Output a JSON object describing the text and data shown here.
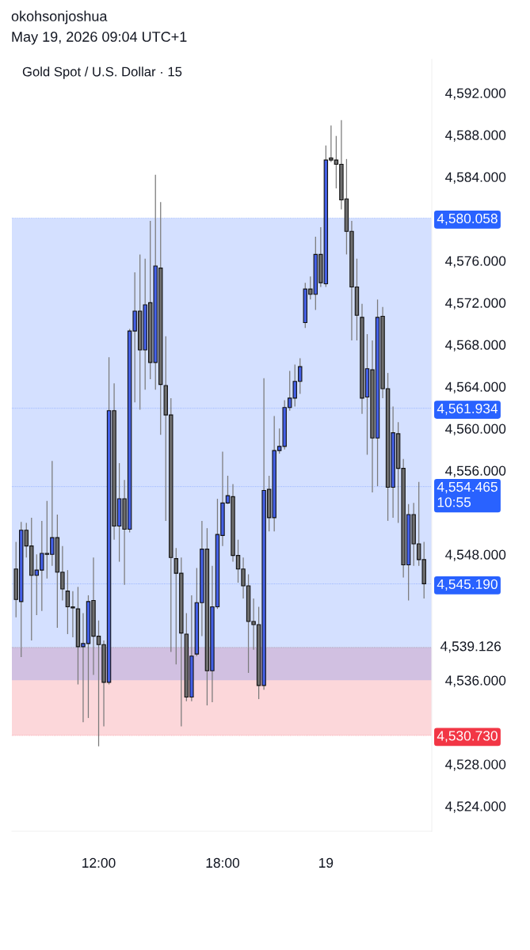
{
  "chart_data": {
    "type": "candlestick",
    "title": "Gold Spot / U.S. Dollar · 15",
    "annotations": [
      "okohsonjoshua",
      "May 19, 2026 09:04 UTC+1"
    ],
    "categories": [
      null,
      null,
      null,
      null,
      null,
      null,
      null,
      null,
      null,
      null,
      null,
      null,
      null,
      null,
      null,
      null,
      "12:00",
      null,
      null,
      null,
      null,
      null,
      null,
      null,
      null,
      null,
      null,
      null,
      null,
      null,
      null,
      null,
      null,
      null,
      null,
      null,
      null,
      null,
      null,
      null,
      "18:00",
      null,
      null,
      null,
      null,
      null,
      null,
      null,
      null,
      null,
      null,
      null,
      null,
      null,
      null,
      null,
      null,
      null,
      null,
      null,
      "19",
      null,
      null,
      null,
      null,
      null,
      null,
      null,
      null,
      null,
      null,
      null,
      null,
      null,
      null,
      null,
      null,
      null,
      null,
      null
    ],
    "ohlc": [
      [
        4546.6,
        4549.2,
        4542.0,
        4543.7
      ],
      [
        4543.5,
        4551.1,
        4538.2,
        4550.3
      ],
      [
        4550.3,
        4551.0,
        4547.7,
        4548.8
      ],
      [
        4548.8,
        4551.5,
        4539.8,
        4546.0
      ],
      [
        4546.0,
        4548.0,
        4542.2,
        4546.5
      ],
      [
        4546.5,
        4551.2,
        4542.6,
        4548.1
      ],
      [
        4548.1,
        4553.1,
        4545.7,
        4548.0
      ],
      [
        4548.0,
        4556.9,
        4546.9,
        4549.6
      ],
      [
        4549.6,
        4551.8,
        4541.0,
        4546.3
      ],
      [
        4546.3,
        4548.8,
        4543.6,
        4544.7
      ],
      [
        4544.5,
        4546.5,
        4540.4,
        4543.0
      ],
      [
        4543.0,
        4544.5,
        4540.1,
        4542.9
      ],
      [
        4542.8,
        4544.9,
        4535.6,
        4539.2
      ],
      [
        4539.2,
        4542.4,
        4532.0,
        4539.5
      ],
      [
        4539.5,
        4544.1,
        4532.4,
        4543.5
      ],
      [
        4543.6,
        4547.7,
        4536.5,
        4540.2
      ],
      [
        4540.2,
        4541.7,
        4529.7,
        4539.4
      ],
      [
        4539.4,
        4539.8,
        4531.6,
        4535.8
      ],
      [
        4535.8,
        4566.8,
        4535.6,
        4561.7
      ],
      [
        4561.7,
        4564.3,
        4549.4,
        4550.7
      ],
      [
        4550.7,
        4556.7,
        4547.3,
        4553.3
      ],
      [
        4553.3,
        4555.1,
        4545.1,
        4550.4
      ],
      [
        4550.4,
        4569.5,
        4550.1,
        4569.3
      ],
      [
        4569.3,
        4574.9,
        4562.5,
        4571.2
      ],
      [
        4571.2,
        4576.6,
        4561.8,
        4567.5
      ],
      [
        4567.5,
        4576.2,
        4563.7,
        4571.8
      ],
      [
        4572.0,
        4579.8,
        4564.7,
        4566.3
      ],
      [
        4566.3,
        4584.2,
        4563.7,
        4575.5
      ],
      [
        4575.3,
        4581.6,
        4559.4,
        4564.2
      ],
      [
        4564.1,
        4568.8,
        4551.2,
        4561.3
      ],
      [
        4561.3,
        4562.9,
        4538.7,
        4547.7
      ],
      [
        4547.6,
        4548.6,
        4537.5,
        4546.2
      ],
      [
        4546.2,
        4547.7,
        4531.6,
        4540.5
      ],
      [
        4540.4,
        4542.4,
        4534.0,
        4534.4
      ],
      [
        4534.4,
        4544.1,
        4534.0,
        4538.3
      ],
      [
        4538.5,
        4546.7,
        4538.3,
        4543.4
      ],
      [
        4543.4,
        4551.2,
        4540.2,
        4548.5
      ],
      [
        4548.5,
        4550.5,
        4533.6,
        4536.9
      ],
      [
        4536.9,
        4546.9,
        4533.9,
        4543.0
      ],
      [
        4543.0,
        4553.3,
        4542.8,
        4549.9
      ],
      [
        4549.8,
        4557.8,
        4548.8,
        4552.9
      ],
      [
        4552.9,
        4555.5,
        4552.8,
        4553.6
      ],
      [
        4553.5,
        4554.7,
        4547.3,
        4547.9
      ],
      [
        4547.9,
        4549.4,
        4545.3,
        4546.6
      ],
      [
        4546.6,
        4547.7,
        4543.8,
        4545.0
      ],
      [
        4545.0,
        4546.1,
        4536.7,
        4541.6
      ],
      [
        4541.6,
        4543.8,
        4538.9,
        4541.3
      ],
      [
        4541.3,
        4543.0,
        4534.2,
        4535.5
      ],
      [
        4535.5,
        4564.8,
        4535.1,
        4554.1
      ],
      [
        4554.2,
        4555.5,
        4550.2,
        4551.5
      ],
      [
        4551.5,
        4561.2,
        4550.2,
        4557.9
      ],
      [
        4557.9,
        4560.0,
        4557.6,
        4558.3
      ],
      [
        4558.3,
        4562.7,
        4558.0,
        4562.0
      ],
      [
        4562.0,
        4565.5,
        4561.7,
        4562.9
      ],
      [
        4562.9,
        4566.1,
        4562.1,
        4564.5
      ],
      [
        4564.5,
        4566.7,
        4563.3,
        4565.9
      ],
      [
        4570.1,
        4573.9,
        4569.6,
        4573.3
      ],
      [
        4573.3,
        4574.5,
        4572.3,
        4572.8
      ],
      [
        4572.8,
        4578.3,
        4571.3,
        4576.6
      ],
      [
        4576.6,
        4579.2,
        4573.5,
        4573.9
      ],
      [
        4573.8,
        4587.0,
        4573.5,
        4585.6
      ],
      [
        4585.8,
        4588.9,
        4585.4,
        4585.6
      ],
      [
        4585.6,
        4587.9,
        4582.9,
        4585.2
      ],
      [
        4585.2,
        4589.4,
        4580.9,
        4581.8
      ],
      [
        4581.9,
        4585.7,
        4576.6,
        4578.8
      ],
      [
        4578.8,
        4579.8,
        4568.4,
        4573.5
      ],
      [
        4573.5,
        4576.2,
        4568.4,
        4570.8
      ],
      [
        4570.6,
        4571.9,
        4561.4,
        4562.9
      ],
      [
        4563.0,
        4569.0,
        4557.5,
        4565.7
      ],
      [
        4565.6,
        4568.4,
        4553.9,
        4559.1
      ],
      [
        4559.1,
        4572.3,
        4554.5,
        4570.6
      ],
      [
        4570.7,
        4571.6,
        4562.9,
        4563.8
      ],
      [
        4563.8,
        4565.3,
        4551.2,
        4554.4
      ],
      [
        4554.4,
        4562.1,
        4551.5,
        4559.6
      ],
      [
        4559.5,
        4560.6,
        4551.0,
        4556.2
      ],
      [
        4556.2,
        4557.1,
        4545.8,
        4547.0
      ],
      [
        4547.0,
        4552.8,
        4543.6,
        4551.8
      ],
      [
        4551.8,
        4552.9,
        4546.9,
        4549.0
      ],
      [
        4549.0,
        4554.9,
        4546.9,
        4547.5
      ],
      [
        4547.5,
        4549.2,
        4543.8,
        4545.2
      ]
    ],
    "colors": [
      "#6e6e6e",
      "#4460e6",
      "#6e6e6e",
      "#6e6e6e",
      "#4460e6",
      "#4460e6",
      "#6e6e6e",
      "#4460e6",
      "#6e6e6e",
      "#6e6e6e",
      "#6e6e6e",
      "#6e6e6e",
      "#6e6e6e",
      "#4460e6",
      "#4460e6",
      "#6e6e6e",
      "#6e6e6e",
      "#6e6e6e",
      "#4460e6",
      "#6e6e6e",
      "#4460e6",
      "#6e6e6e",
      "#4460e6",
      "#4460e6",
      "#6e6e6e",
      "#4460e6",
      "#6e6e6e",
      "#4460e6",
      "#6e6e6e",
      "#6e6e6e",
      "#6e6e6e",
      "#6e6e6e",
      "#6e6e6e",
      "#6e6e6e",
      "#4460e6",
      "#4460e6",
      "#4460e6",
      "#6e6e6e",
      "#4460e6",
      "#4460e6",
      "#4460e6",
      "#4460e6",
      "#6e6e6e",
      "#6e6e6e",
      "#6e6e6e",
      "#6e6e6e",
      "#6e6e6e",
      "#6e6e6e",
      "#4460e6",
      "#6e6e6e",
      "#4460e6",
      "#4460e6",
      "#4460e6",
      "#4460e6",
      "#4460e6",
      "#4460e6",
      "#4460e6",
      "#6e6e6e",
      "#4460e6",
      "#6e6e6e",
      "#4460e6",
      "#6e6e6e",
      "#6e6e6e",
      "#6e6e6e",
      "#6e6e6e",
      "#6e6e6e",
      "#6e6e6e",
      "#6e6e6e",
      "#4460e6",
      "#6e6e6e",
      "#4460e6",
      "#6e6e6e",
      "#6e6e6e",
      "#4460e6",
      "#6e6e6e",
      "#6e6e6e",
      "#4460e6",
      "#6e6e6e",
      "#6e6e6e",
      "#6e6e6e"
    ],
    "ylim": [
      4521.6,
      4595.2
    ],
    "yticks": [
      {
        "value": 4524,
        "label": "4,524.000"
      },
      {
        "value": 4528,
        "label": "4,528.000"
      },
      {
        "value": 4536,
        "label": "4,536.000"
      },
      {
        "value": 4548,
        "label": "4,548.000"
      },
      {
        "value": 4556,
        "label": "4,556.000"
      },
      {
        "value": 4560,
        "label": "4,560.000"
      },
      {
        "value": 4564,
        "label": "4,564.000"
      },
      {
        "value": 4568,
        "label": "4,568.000"
      },
      {
        "value": 4572,
        "label": "4,572.000"
      },
      {
        "value": 4576,
        "label": "4,576.000"
      },
      {
        "value": 4584,
        "label": "4,584.000"
      },
      {
        "value": 4588,
        "label": "4,588.000"
      },
      {
        "value": 4592,
        "label": "4,592.000"
      }
    ],
    "bands": [
      {
        "axis": "y",
        "from": 4539.126,
        "to": 4580.058,
        "color": "#2962ff"
      },
      {
        "axis": "y",
        "from": 4530.73,
        "to": 4539.126,
        "color": "#f23645"
      },
      {
        "axis": "y",
        "from": 4536.0,
        "to": 4539.126,
        "color": "#2962ff"
      }
    ],
    "ref_lines": [
      {
        "axis": "y",
        "value": 4580.058,
        "label": "4,580.058",
        "color": "#2962ff",
        "line_style": "dotted"
      },
      {
        "axis": "y",
        "value": 4561.934,
        "label": "4,561.934",
        "color": "#2962ff",
        "line_style": "dotted"
      },
      {
        "axis": "y",
        "value": 4554.465,
        "label": "4,554.465\n10:55",
        "color": "#2962ff",
        "line_style": "dotted"
      },
      {
        "axis": "y",
        "value": 4545.19,
        "label": "4,545.190",
        "color": "#2962ff",
        "line_style": "dotted"
      },
      {
        "axis": "y",
        "value": 4539.126,
        "label": "4,539.126",
        "line_style": "dotted"
      },
      {
        "axis": "y",
        "value": 4530.73,
        "label": "4,530.730",
        "color": "#f23645",
        "line_style": "dotted"
      }
    ],
    "grid": false
  }
}
